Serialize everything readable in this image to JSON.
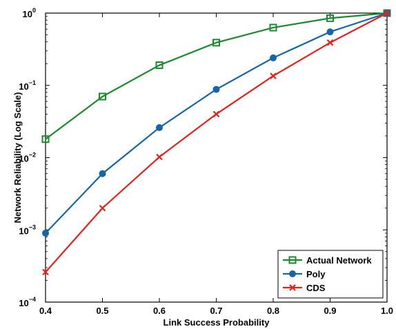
{
  "chart_data": {
    "type": "line",
    "title": "",
    "xlabel": "Link Success Probability",
    "ylabel": "Network Reliability (Log Scale)",
    "yscale": "log",
    "xlim": [
      0.4,
      1.0
    ],
    "ylim": [
      0.0001,
      1
    ],
    "grid": false,
    "legend_position": "bottom-right",
    "x": [
      0.4,
      0.5,
      0.6,
      0.7,
      0.8,
      0.9,
      1.0
    ],
    "x_tick_labels": [
      "0.4",
      "0.5",
      "0.6",
      "0.7",
      "0.8",
      "0.9",
      "1.0"
    ],
    "y_ticks": [
      {
        "value": 0.0001,
        "base": "10",
        "exp": "−4"
      },
      {
        "value": 0.001,
        "base": "10",
        "exp": "−3"
      },
      {
        "value": 0.01,
        "base": "10",
        "exp": "−2"
      },
      {
        "value": 0.1,
        "base": "10",
        "exp": "−1"
      },
      {
        "value": 1,
        "base": "10",
        "exp": "0"
      }
    ],
    "series": [
      {
        "name": "Actual Network",
        "color": "#1a8a2e",
        "marker": "square",
        "values": [
          0.018,
          0.07,
          0.19,
          0.39,
          0.63,
          0.85,
          1.0
        ]
      },
      {
        "name": "Poly",
        "color": "#1565a8",
        "marker": "circle",
        "values": [
          0.0009,
          0.006,
          0.026,
          0.088,
          0.24,
          0.55,
          1.0
        ]
      },
      {
        "name": "CDS",
        "color": "#e8201c",
        "marker": "x",
        "values": [
          0.00026,
          0.002,
          0.0102,
          0.04,
          0.135,
          0.39,
          1.0
        ]
      }
    ]
  }
}
